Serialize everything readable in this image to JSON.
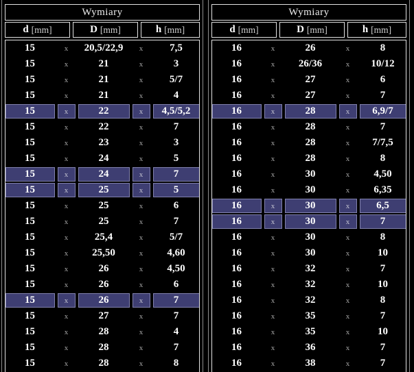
{
  "colors": {
    "background": "#000000",
    "box_border": "#e4e4e4",
    "outer_border": "#8f8f8f",
    "text": "#ffffff",
    "separator_text": "#a8a8a8",
    "highlight_fill": "#3e3e72",
    "highlight_border": "#8181ad"
  },
  "tables": [
    {
      "title": "Wymiary",
      "columns": [
        {
          "letter": "d",
          "unit": "[mm]"
        },
        {
          "letter": "D",
          "unit": "[mm]"
        },
        {
          "letter": "h",
          "unit": "[mm]"
        }
      ],
      "separator": "x",
      "rows": [
        {
          "d": "15",
          "D": "20,5/22,9",
          "h": "7,5",
          "hl": false
        },
        {
          "d": "15",
          "D": "21",
          "h": "3",
          "hl": false
        },
        {
          "d": "15",
          "D": "21",
          "h": "5/7",
          "hl": false
        },
        {
          "d": "15",
          "D": "21",
          "h": "4",
          "hl": false
        },
        {
          "d": "15",
          "D": "22",
          "h": "4,5/5,2",
          "hl": true
        },
        {
          "d": "15",
          "D": "22",
          "h": "7",
          "hl": false
        },
        {
          "d": "15",
          "D": "23",
          "h": "3",
          "hl": false
        },
        {
          "d": "15",
          "D": "24",
          "h": "5",
          "hl": false
        },
        {
          "d": "15",
          "D": "24",
          "h": "7",
          "hl": true
        },
        {
          "d": "15",
          "D": "25",
          "h": "5",
          "hl": true
        },
        {
          "d": "15",
          "D": "25",
          "h": "6",
          "hl": false
        },
        {
          "d": "15",
          "D": "25",
          "h": "7",
          "hl": false
        },
        {
          "d": "15",
          "D": "25,4",
          "h": "5/7",
          "hl": false
        },
        {
          "d": "15",
          "D": "25,50",
          "h": "4,60",
          "hl": false
        },
        {
          "d": "15",
          "D": "26",
          "h": "4,50",
          "hl": false
        },
        {
          "d": "15",
          "D": "26",
          "h": "6",
          "hl": false
        },
        {
          "d": "15",
          "D": "26",
          "h": "7",
          "hl": true
        },
        {
          "d": "15",
          "D": "27",
          "h": "7",
          "hl": false
        },
        {
          "d": "15",
          "D": "28",
          "h": "4",
          "hl": false
        },
        {
          "d": "15",
          "D": "28",
          "h": "7",
          "hl": false
        },
        {
          "d": "15",
          "D": "28",
          "h": "8",
          "hl": false
        }
      ]
    },
    {
      "title": "Wymiary",
      "columns": [
        {
          "letter": "d",
          "unit": "[mm]"
        },
        {
          "letter": "D",
          "unit": "[mm]"
        },
        {
          "letter": "h",
          "unit": "[mm]"
        }
      ],
      "separator": "x",
      "rows": [
        {
          "d": "16",
          "D": "26",
          "h": "8",
          "hl": false
        },
        {
          "d": "16",
          "D": "26/36",
          "h": "10/12",
          "hl": false
        },
        {
          "d": "16",
          "D": "27",
          "h": "6",
          "hl": false
        },
        {
          "d": "16",
          "D": "27",
          "h": "7",
          "hl": false
        },
        {
          "d": "16",
          "D": "28",
          "h": "6,9/7",
          "hl": true
        },
        {
          "d": "16",
          "D": "28",
          "h": "7",
          "hl": false
        },
        {
          "d": "16",
          "D": "28",
          "h": "7/7,5",
          "hl": false
        },
        {
          "d": "16",
          "D": "28",
          "h": "8",
          "hl": false
        },
        {
          "d": "16",
          "D": "30",
          "h": "4,50",
          "hl": false
        },
        {
          "d": "16",
          "D": "30",
          "h": "6,35",
          "hl": false
        },
        {
          "d": "16",
          "D": "30",
          "h": "6,5",
          "hl": true
        },
        {
          "d": "16",
          "D": "30",
          "h": "7",
          "hl": true
        },
        {
          "d": "16",
          "D": "30",
          "h": "8",
          "hl": false
        },
        {
          "d": "16",
          "D": "30",
          "h": "10",
          "hl": false
        },
        {
          "d": "16",
          "D": "32",
          "h": "7",
          "hl": false
        },
        {
          "d": "16",
          "D": "32",
          "h": "10",
          "hl": false
        },
        {
          "d": "16",
          "D": "32",
          "h": "8",
          "hl": false
        },
        {
          "d": "16",
          "D": "35",
          "h": "7",
          "hl": false
        },
        {
          "d": "16",
          "D": "35",
          "h": "10",
          "hl": false
        },
        {
          "d": "16",
          "D": "36",
          "h": "7",
          "hl": false
        },
        {
          "d": "16",
          "D": "38",
          "h": "7",
          "hl": false
        }
      ]
    }
  ]
}
